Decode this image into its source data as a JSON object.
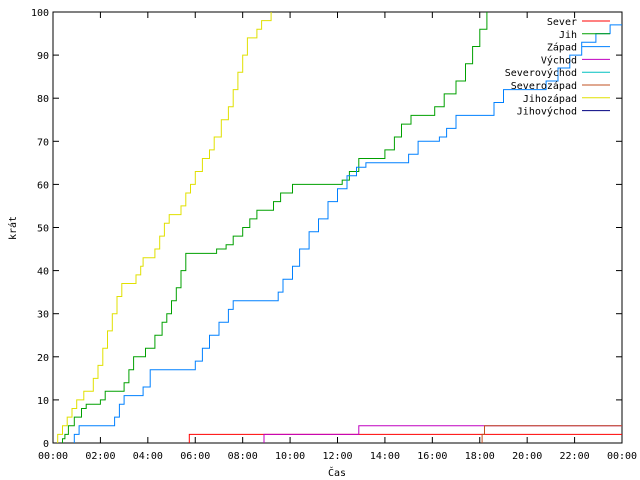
{
  "chart_data": {
    "type": "line",
    "title": "",
    "xlabel": "Čas",
    "ylabel": "krát",
    "xlim": [
      0,
      24
    ],
    "ylim": [
      0,
      100
    ],
    "x_ticks": [
      {
        "value": 0,
        "label": "00:00"
      },
      {
        "value": 2,
        "label": "02:00"
      },
      {
        "value": 4,
        "label": "04:00"
      },
      {
        "value": 6,
        "label": "06:00"
      },
      {
        "value": 8,
        "label": "08:00"
      },
      {
        "value": 10,
        "label": "10:00"
      },
      {
        "value": 12,
        "label": "12:00"
      },
      {
        "value": 14,
        "label": "14:00"
      },
      {
        "value": 16,
        "label": "16:00"
      },
      {
        "value": 18,
        "label": "18:00"
      },
      {
        "value": 20,
        "label": "20:00"
      },
      {
        "value": 22,
        "label": "22:00"
      },
      {
        "value": 24,
        "label": "00:00"
      }
    ],
    "y_ticks": [
      {
        "value": 0,
        "label": "0"
      },
      {
        "value": 10,
        "label": "10"
      },
      {
        "value": 20,
        "label": "20"
      },
      {
        "value": 30,
        "label": "30"
      },
      {
        "value": 40,
        "label": "40"
      },
      {
        "value": 50,
        "label": "50"
      },
      {
        "value": 60,
        "label": "60"
      },
      {
        "value": 70,
        "label": "70"
      },
      {
        "value": 80,
        "label": "80"
      },
      {
        "value": 90,
        "label": "90"
      },
      {
        "value": 100,
        "label": "100"
      }
    ],
    "grid": false,
    "legend_position": "top-right",
    "series": [
      {
        "name": "Sever",
        "color": "#ff0000",
        "points": [
          [
            5.75,
            0
          ],
          [
            5.75,
            2
          ],
          [
            24,
            2
          ]
        ]
      },
      {
        "name": "Jih",
        "color": "#00a000",
        "points": [
          [
            0.4,
            0
          ],
          [
            0.4,
            1
          ],
          [
            0.5,
            2
          ],
          [
            0.65,
            4
          ],
          [
            0.9,
            6
          ],
          [
            1.2,
            8
          ],
          [
            1.4,
            9
          ],
          [
            2.0,
            10
          ],
          [
            2.2,
            12
          ],
          [
            3.0,
            14
          ],
          [
            3.2,
            17
          ],
          [
            3.4,
            20
          ],
          [
            3.9,
            22
          ],
          [
            4.3,
            25
          ],
          [
            4.6,
            28
          ],
          [
            4.8,
            30
          ],
          [
            5.0,
            33
          ],
          [
            5.2,
            36
          ],
          [
            5.4,
            40
          ],
          [
            5.6,
            44
          ],
          [
            6.9,
            45
          ],
          [
            7.3,
            46
          ],
          [
            7.6,
            48
          ],
          [
            8.0,
            50
          ],
          [
            8.3,
            52
          ],
          [
            8.6,
            54
          ],
          [
            9.3,
            56
          ],
          [
            9.6,
            58
          ],
          [
            10.1,
            60
          ],
          [
            12.2,
            61
          ],
          [
            12.5,
            63
          ],
          [
            12.9,
            66
          ],
          [
            14.0,
            68
          ],
          [
            14.4,
            71
          ],
          [
            14.7,
            74
          ],
          [
            15.1,
            76
          ],
          [
            16.1,
            78
          ],
          [
            16.5,
            81
          ],
          [
            17.0,
            84
          ],
          [
            17.4,
            88
          ],
          [
            17.7,
            92
          ],
          [
            18.0,
            96
          ],
          [
            18.3,
            100
          ]
        ]
      },
      {
        "name": "Západ",
        "color": "#0080ff",
        "points": [
          [
            0.9,
            0
          ],
          [
            0.9,
            2
          ],
          [
            1.1,
            4
          ],
          [
            2.6,
            6
          ],
          [
            2.8,
            9
          ],
          [
            3.0,
            11
          ],
          [
            3.8,
            13
          ],
          [
            4.1,
            17
          ],
          [
            6.0,
            19
          ],
          [
            6.3,
            22
          ],
          [
            6.6,
            25
          ],
          [
            7.0,
            28
          ],
          [
            7.4,
            31
          ],
          [
            7.6,
            33
          ],
          [
            9.5,
            35
          ],
          [
            9.7,
            38
          ],
          [
            10.1,
            41
          ],
          [
            10.4,
            45
          ],
          [
            10.8,
            49
          ],
          [
            11.2,
            52
          ],
          [
            11.6,
            56
          ],
          [
            12.0,
            59
          ],
          [
            12.4,
            62
          ],
          [
            12.8,
            64
          ],
          [
            13.2,
            65
          ],
          [
            15.0,
            67
          ],
          [
            15.4,
            70
          ],
          [
            16.3,
            71
          ],
          [
            16.6,
            73
          ],
          [
            17.0,
            76
          ],
          [
            18.6,
            79
          ],
          [
            19.0,
            82
          ],
          [
            20.8,
            84
          ],
          [
            21.3,
            87
          ],
          [
            21.8,
            90
          ],
          [
            22.3,
            93
          ],
          [
            22.9,
            95
          ],
          [
            23.5,
            97
          ],
          [
            24,
            97
          ]
        ]
      },
      {
        "name": "Východ",
        "color": "#c000c0",
        "points": [
          [
            8.9,
            0
          ],
          [
            8.9,
            2
          ],
          [
            12.9,
            2
          ],
          [
            12.9,
            4
          ],
          [
            24,
            4
          ]
        ]
      },
      {
        "name": "Severovýchod",
        "color": "#00c0c0",
        "points": []
      },
      {
        "name": "Severozápad",
        "color": "#c05020",
        "points": [
          [
            18.1,
            0
          ],
          [
            18.1,
            2
          ],
          [
            18.2,
            4
          ],
          [
            24,
            4
          ]
        ]
      },
      {
        "name": "Jihozápad",
        "color": "#e0e000",
        "points": [
          [
            0.2,
            0
          ],
          [
            0.2,
            2
          ],
          [
            0.4,
            4
          ],
          [
            0.6,
            6
          ],
          [
            0.8,
            8
          ],
          [
            1.0,
            10
          ],
          [
            1.3,
            12
          ],
          [
            1.7,
            15
          ],
          [
            1.9,
            18
          ],
          [
            2.1,
            22
          ],
          [
            2.3,
            26
          ],
          [
            2.5,
            30
          ],
          [
            2.7,
            34
          ],
          [
            2.9,
            37
          ],
          [
            3.5,
            39
          ],
          [
            3.7,
            41
          ],
          [
            3.8,
            43
          ],
          [
            4.3,
            45
          ],
          [
            4.5,
            48
          ],
          [
            4.7,
            51
          ],
          [
            4.9,
            53
          ],
          [
            5.4,
            55
          ],
          [
            5.6,
            58
          ],
          [
            5.8,
            60
          ],
          [
            6.0,
            63
          ],
          [
            6.3,
            66
          ],
          [
            6.6,
            68
          ],
          [
            6.8,
            71
          ],
          [
            7.1,
            75
          ],
          [
            7.4,
            78
          ],
          [
            7.6,
            82
          ],
          [
            7.8,
            86
          ],
          [
            8.0,
            90
          ],
          [
            8.2,
            94
          ],
          [
            8.6,
            96
          ],
          [
            8.8,
            98
          ],
          [
            9.2,
            100
          ]
        ]
      },
      {
        "name": "Jihovýchod",
        "color": "#000080",
        "points": []
      }
    ]
  }
}
